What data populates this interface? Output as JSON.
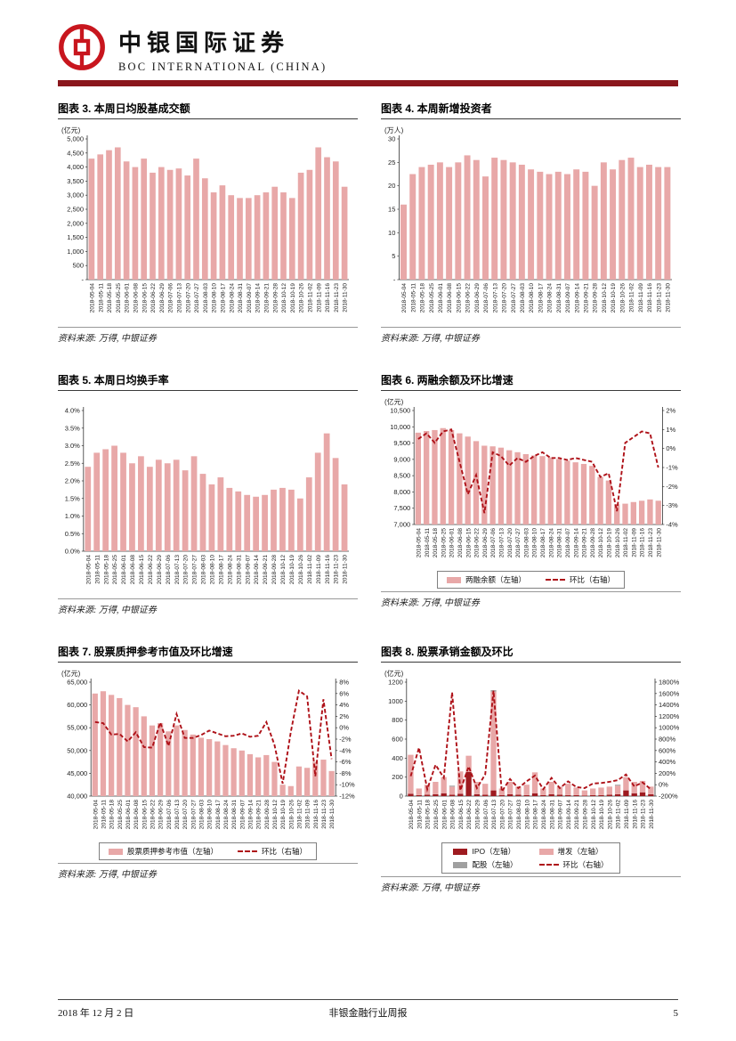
{
  "header": {
    "brand_cn": "中银国际证券",
    "brand_en": "BOC INTERNATIONAL (CHINA)"
  },
  "footer": {
    "date": "2018 年 12 月 2 日",
    "report_title": "非银金融行业周报",
    "page_number": "5"
  },
  "source_label": "资料来源: 万得, 中银证券",
  "colors": {
    "bar_pink": "#e8a8a8",
    "line_red": "#ae1118",
    "ipo_red": "#9e1b20",
    "peigu_gray": "#a0a0a0",
    "band_red": "#8a161c",
    "logo_red": "#c8161e",
    "axis": "#333333"
  },
  "chart_data": {
    "shared_categories": [
      "2018-05-04",
      "2018-05-11",
      "2018-05-18",
      "2018-05-25",
      "2018-06-01",
      "2018-06-08",
      "2018-06-15",
      "2018-06-22",
      "2018-06-29",
      "2018-07-06",
      "2018-07-13",
      "2018-07-20",
      "2018-07-27",
      "2018-08-03",
      "2018-08-10",
      "2018-08-17",
      "2018-08-24",
      "2018-08-31",
      "2018-09-07",
      "2018-09-14",
      "2018-09-21",
      "2018-09-28",
      "2018-10-12",
      "2018-10-19",
      "2018-10-26",
      "2018-11-02",
      "2018-11-09",
      "2018-11-16",
      "2018-11-23",
      "2018-11-30"
    ],
    "charts": [
      {
        "title": "图表 3. 本周日均股基成交额",
        "unit": "(亿元)",
        "type": "bar",
        "values": [
          4300,
          4450,
          4600,
          4700,
          4200,
          4000,
          4300,
          3800,
          4000,
          3900,
          3950,
          3700,
          4300,
          3600,
          3100,
          3350,
          3000,
          2900,
          2900,
          3000,
          3100,
          3300,
          3100,
          2900,
          3800,
          3900,
          4700,
          4350,
          4200,
          3300
        ],
        "left": {
          "min": 0,
          "max": 5000,
          "tick_values": [
            5000,
            4500,
            4000,
            3500,
            3000,
            2500,
            2000,
            1500,
            1000,
            500,
            0
          ],
          "tick_labels": [
            "5,000",
            "4,500",
            "4,000",
            "3,500",
            "3,000",
            "2,500",
            "2,000",
            "1,500",
            "1,000",
            "500",
            "-"
          ]
        }
      },
      {
        "title": "图表 4. 本周新增投资者",
        "unit": "(万人)",
        "type": "bar",
        "values": [
          16,
          22.5,
          24,
          24.5,
          25,
          24,
          25,
          26.5,
          25.5,
          22,
          26,
          25.5,
          25,
          24.5,
          23.5,
          23,
          22.5,
          23,
          22.5,
          23.5,
          23,
          20,
          25,
          23.5,
          25.5,
          26,
          24,
          24.5,
          24,
          24
        ],
        "left": {
          "min": 0,
          "max": 30,
          "tick_values": [
            30,
            25,
            20,
            15,
            10,
            5,
            0
          ],
          "tick_labels": [
            "30",
            "25",
            "20",
            "15",
            "10",
            "5",
            "-"
          ]
        }
      },
      {
        "title": "图表 5. 本周日均换手率",
        "unit": "",
        "type": "bar",
        "values": [
          2.4,
          2.8,
          2.9,
          3.0,
          2.8,
          2.5,
          2.7,
          2.4,
          2.6,
          2.5,
          2.6,
          2.3,
          2.7,
          2.2,
          1.9,
          2.1,
          1.8,
          1.7,
          1.6,
          1.55,
          1.6,
          1.75,
          1.8,
          1.75,
          1.5,
          2.1,
          2.8,
          3.35,
          2.65,
          1.9
        ],
        "left": {
          "min": 0,
          "max": 4,
          "tick_values": [
            4,
            3.5,
            3,
            2.5,
            2,
            1.5,
            1,
            0.5,
            0
          ],
          "tick_labels": [
            "4.0%",
            "3.5%",
            "3.0%",
            "2.5%",
            "2.0%",
            "1.5%",
            "1.0%",
            "0.5%",
            "0.0%"
          ]
        }
      },
      {
        "title": "图表 6. 两融余额及环比增速",
        "unit": "(亿元)",
        "type": "bar+line",
        "values": [
          9820,
          9870,
          9900,
          9960,
          9900,
          9800,
          9700,
          9560,
          9420,
          9400,
          9360,
          9280,
          9220,
          9160,
          9120,
          9100,
          9060,
          9010,
          8960,
          8910,
          8860,
          8800,
          8460,
          8350,
          7620,
          7640,
          7690,
          7730,
          7770,
          7730
        ],
        "line_values": [
          0.5,
          0.8,
          0.3,
          0.9,
          1.0,
          -0.7,
          -2.4,
          -1.4,
          -3.4,
          -0.2,
          -0.4,
          -0.9,
          -0.5,
          -0.7,
          -0.4,
          -0.2,
          -0.5,
          -0.5,
          -0.6,
          -0.5,
          -0.6,
          -0.7,
          -1.5,
          -1.3,
          -3.3,
          0.3,
          0.6,
          0.9,
          0.8,
          -1.0
        ],
        "left": {
          "min": 7000,
          "max": 10500,
          "tick_values": [
            10500,
            10000,
            9500,
            9000,
            8500,
            8000,
            7500,
            7000
          ],
          "tick_labels": [
            "10,500",
            "10,000",
            "9,500",
            "9,000",
            "8,500",
            "8,000",
            "7,500",
            "7,000"
          ]
        },
        "right": {
          "min": -4,
          "max": 2,
          "tick_values": [
            2,
            1,
            0,
            -1,
            -2,
            -3,
            -4
          ],
          "tick_labels": [
            "2%",
            "1%",
            "0%",
            "-1%",
            "-2%",
            "-3%",
            "-4%"
          ]
        },
        "legend": [
          {
            "swatch": "bar",
            "color_key": "bar_pink",
            "label": "两融余额（左轴）"
          },
          {
            "swatch": "line",
            "label": "环比（右轴）"
          }
        ]
      },
      {
        "title": "图表 7. 股票质押参考市值及环比增速",
        "unit": "(亿元)",
        "type": "bar+line",
        "values": [
          62500,
          63000,
          62200,
          61500,
          60000,
          59500,
          57500,
          55500,
          56000,
          54200,
          55500,
          54500,
          53500,
          52800,
          52500,
          52000,
          51200,
          50500,
          50000,
          49200,
          48500,
          49000,
          47500,
          42500,
          42200,
          46500,
          46200,
          47500,
          48000,
          45500
        ],
        "line_values": [
          1.0,
          0.8,
          -1.2,
          -1.1,
          -2.4,
          -0.8,
          -3.4,
          -3.5,
          0.9,
          -3.2,
          2.4,
          -1.8,
          -1.8,
          -1.3,
          -0.5,
          -1.0,
          -1.5,
          -1.4,
          -1.0,
          -1.6,
          -1.4,
          1.0,
          -3.0,
          -9.8,
          -0.7,
          6.5,
          5.5,
          -8.5,
          5.0,
          -5.5
        ],
        "left": {
          "min": 40000,
          "max": 65000,
          "tick_values": [
            65000,
            60000,
            55000,
            50000,
            45000,
            40000
          ],
          "tick_labels": [
            "65,000",
            "60,000",
            "55,000",
            "50,000",
            "45,000",
            "40,000"
          ]
        },
        "right": {
          "min": -12,
          "max": 8,
          "tick_values": [
            8,
            6,
            4,
            2,
            0,
            -2,
            -4,
            -6,
            -8,
            -10,
            -12
          ],
          "tick_labels": [
            "8%",
            "6%",
            "4%",
            "2%",
            "0%",
            "-2%",
            "-4%",
            "-6%",
            "-8%",
            "-10%",
            "-12%"
          ]
        },
        "legend": [
          {
            "swatch": "bar",
            "color_key": "bar_pink",
            "label": "股票质押参考市值（左轴）"
          },
          {
            "swatch": "line",
            "label": "环比（右轴）"
          }
        ]
      },
      {
        "title": "图表 8. 股票承销金额及环比",
        "unit": "(亿元)",
        "type": "stacked-bar+line",
        "series": [
          {
            "name": "IPO",
            "color_key": "ipo_red",
            "values": [
              25,
              10,
              15,
              20,
              30,
              15,
              25,
              255,
              20,
              15,
              60,
              10,
              20,
              15,
              10,
              30,
              10,
              20,
              15,
              10,
              10,
              5,
              10,
              10,
              15,
              20,
              60,
              30,
              40,
              20
            ]
          },
          {
            "name": "增发",
            "color_key": "bar_pink",
            "values": [
              410,
              70,
              105,
              130,
              170,
              85,
              235,
              170,
              130,
              115,
              1040,
              70,
              130,
              85,
              110,
              220,
              70,
              130,
              85,
              120,
              80,
              55,
              70,
              80,
              85,
              90,
              140,
              120,
              120,
              80
            ]
          },
          {
            "name": "配股",
            "color_key": "peigu_gray",
            "values": [
              0,
              0,
              0,
              0,
              0,
              10,
              0,
              0,
              0,
              0,
              15,
              0,
              0,
              0,
              0,
              0,
              0,
              0,
              0,
              0,
              0,
              0,
              0,
              0,
              0,
              10,
              0,
              0,
              0,
              0
            ]
          }
        ],
        "line_values": [
          150,
          650,
          -80,
          350,
          120,
          1620,
          -100,
          320,
          -60,
          180,
          1650,
          -120,
          100,
          -60,
          60,
          160,
          -80,
          120,
          -60,
          60,
          -40,
          -60,
          20,
          30,
          50,
          80,
          180,
          -30,
          40,
          -80
        ],
        "left": {
          "min": 0,
          "max": 1200,
          "tick_values": [
            1200,
            1000,
            800,
            600,
            400,
            200,
            0
          ],
          "tick_labels": [
            "1200",
            "1000",
            "800",
            "600",
            "400",
            "200",
            "0"
          ]
        },
        "right": {
          "min": -200,
          "max": 1800,
          "tick_values": [
            1800,
            1600,
            1400,
            1200,
            1000,
            800,
            600,
            400,
            200,
            0,
            -200
          ],
          "tick_labels": [
            "1800%",
            "1600%",
            "1400%",
            "1200%",
            "1000%",
            "800%",
            "600%",
            "400%",
            "200%",
            "0%",
            "-200%"
          ]
        },
        "legend": [
          {
            "swatch": "bar",
            "color_key": "ipo_red",
            "label": "IPO（左轴）"
          },
          {
            "swatch": "bar",
            "color_key": "bar_pink",
            "label": "增发（左轴）"
          },
          {
            "swatch": "bar",
            "color_key": "peigu_gray",
            "label": "配股（左轴）"
          },
          {
            "swatch": "line",
            "label": "环比（右轴）"
          }
        ]
      }
    ]
  }
}
